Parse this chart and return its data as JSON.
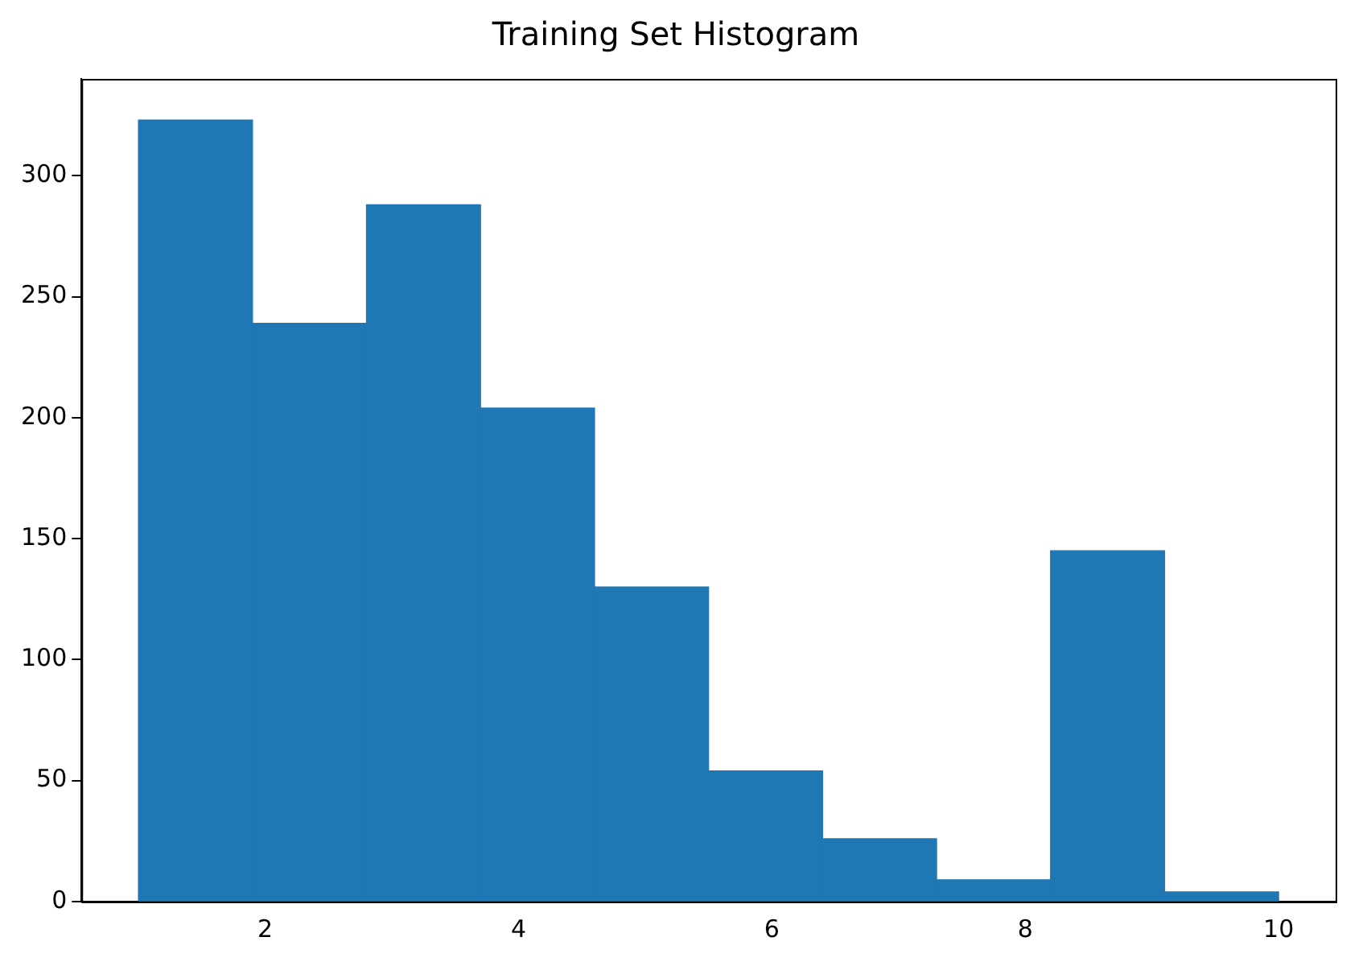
{
  "chart_data": {
    "type": "histogram",
    "title": "Training Set Histogram",
    "bins": [
      1,
      1.9,
      2.8,
      3.7,
      4.6,
      5.5,
      6.4,
      7.3,
      8.2,
      9.1,
      10
    ],
    "values": [
      323,
      239,
      288,
      204,
      130,
      54,
      26,
      9,
      145,
      4
    ],
    "color": "#1f77b4",
    "xlim": [
      0.55,
      10.45
    ],
    "xticks": [
      2,
      4,
      6,
      8,
      10
    ],
    "ylim": [
      0,
      340
    ],
    "yticks": [
      0,
      50,
      100,
      150,
      200,
      250,
      300
    ],
    "grid": false,
    "legend": false
  }
}
